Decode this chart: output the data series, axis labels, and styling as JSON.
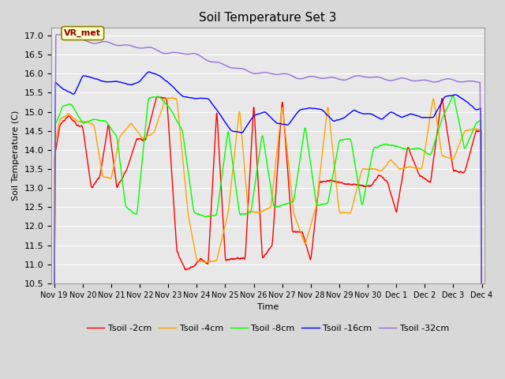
{
  "title": "Soil Temperature Set 3",
  "xlabel": "Time",
  "ylabel": "Soil Temperature (C)",
  "ylim": [
    10.5,
    17.2
  ],
  "bg_color": "#d8d8d8",
  "plot_bg": "#e8e8e8",
  "grid_color": "white",
  "legend_labels": [
    "Tsoil -2cm",
    "Tsoil -4cm",
    "Tsoil -8cm",
    "Tsoil -16cm",
    "Tsoil -32cm"
  ],
  "line_colors": [
    "red",
    "orange",
    "lime",
    "blue",
    "mediumpurple"
  ],
  "annotation_text": "VR_met",
  "yticks": [
    10.5,
    11.0,
    11.5,
    12.0,
    12.5,
    13.0,
    13.5,
    14.0,
    14.5,
    15.0,
    15.5,
    16.0,
    16.5,
    17.0
  ],
  "x_tick_labels": [
    "Nov 19",
    "Nov 20",
    "Nov 21",
    "Nov 22",
    "Nov 23",
    "Nov 24",
    "Nov 25",
    "Nov 26",
    "Nov 27",
    "Nov 28",
    "Nov 29",
    "Nov 30",
    "Dec 1",
    "Dec 2",
    "Dec 3",
    "Dec 4"
  ],
  "x_tick_positions": [
    0,
    1,
    2,
    3,
    4,
    5,
    6,
    7,
    8,
    9,
    10,
    11,
    12,
    13,
    14,
    15
  ]
}
